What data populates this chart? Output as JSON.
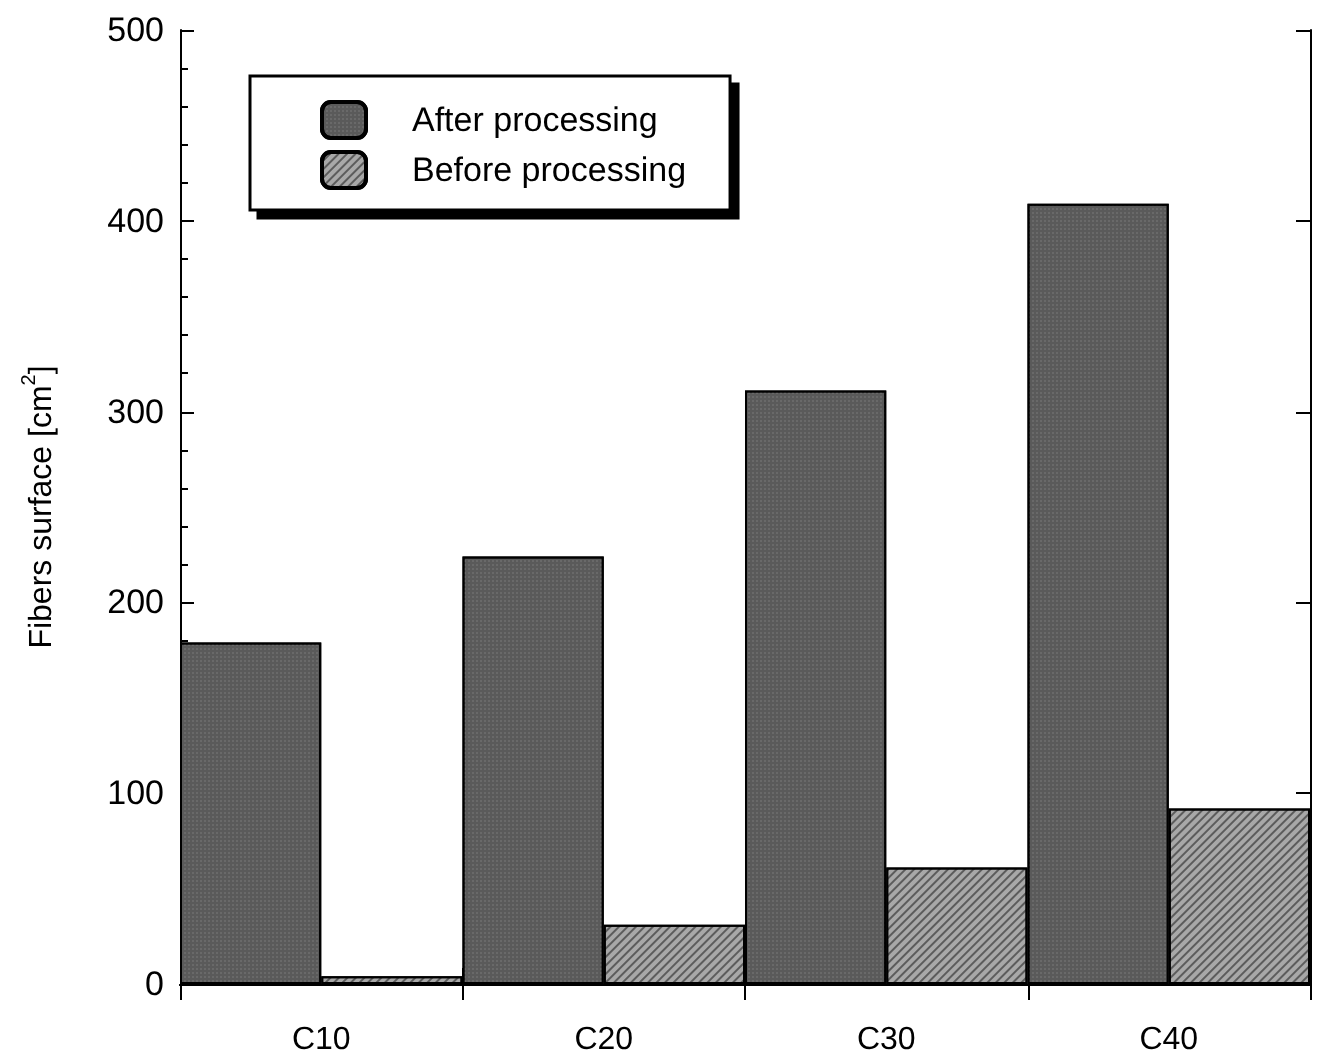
{
  "chart_data": {
    "type": "bar",
    "ylabel": "Fibers surface [cm$^{2}$]",
    "categories": [
      "C10",
      "C20",
      "C30",
      "C40"
    ],
    "series": [
      {
        "name": "After processing",
        "color": "#5a5a5a",
        "values": [
          179,
          224,
          311,
          409
        ]
      },
      {
        "name": "Before processing",
        "color": "#a8a8a8",
        "values": [
          4,
          31,
          61,
          92
        ]
      }
    ],
    "ylim": [
      0,
      500
    ],
    "yticks": [
      0,
      100,
      200,
      300,
      400,
      500
    ],
    "grid": false,
    "legend": "top left"
  }
}
